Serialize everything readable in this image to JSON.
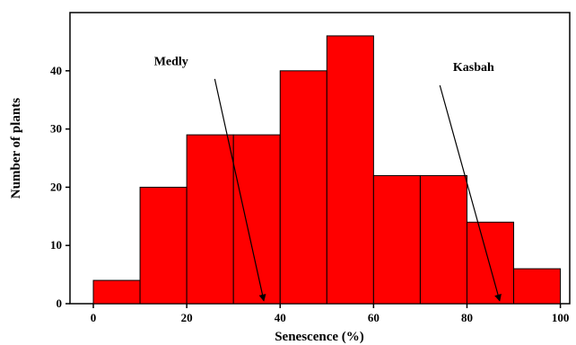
{
  "chart_data": {
    "type": "bar",
    "bins": [
      {
        "start": 0,
        "end": 10,
        "value": 4
      },
      {
        "start": 10,
        "end": 20,
        "value": 20
      },
      {
        "start": 20,
        "end": 30,
        "value": 29
      },
      {
        "start": 30,
        "end": 40,
        "value": 29
      },
      {
        "start": 40,
        "end": 50,
        "value": 40
      },
      {
        "start": 50,
        "end": 60,
        "value": 46
      },
      {
        "start": 60,
        "end": 70,
        "value": 22
      },
      {
        "start": 70,
        "end": 80,
        "value": 22
      },
      {
        "start": 80,
        "end": 90,
        "value": 14
      },
      {
        "start": 90,
        "end": 100,
        "value": 6
      }
    ],
    "title": "",
    "xlabel": "Senescence (%)",
    "ylabel": "Number of plants",
    "xlim": [
      -5,
      102
    ],
    "ylim": [
      0,
      50
    ],
    "xticks": [
      0,
      20,
      40,
      60,
      80,
      100
    ],
    "yticks": [
      0,
      10,
      20,
      30,
      40
    ],
    "grid": false,
    "bar_color": "#ff0000",
    "edge_color": "#000000",
    "annotations": [
      {
        "text": "Medly",
        "text_x": 13,
        "text_y": 41,
        "arrow_from": [
          26,
          38.6
        ],
        "arrow_to": [
          36.5,
          0.5
        ]
      },
      {
        "text": "Kasbah",
        "text_x": 77,
        "text_y": 40,
        "arrow_from": [
          74.2,
          37.5
        ],
        "arrow_to": [
          87,
          0.5
        ]
      }
    ]
  }
}
